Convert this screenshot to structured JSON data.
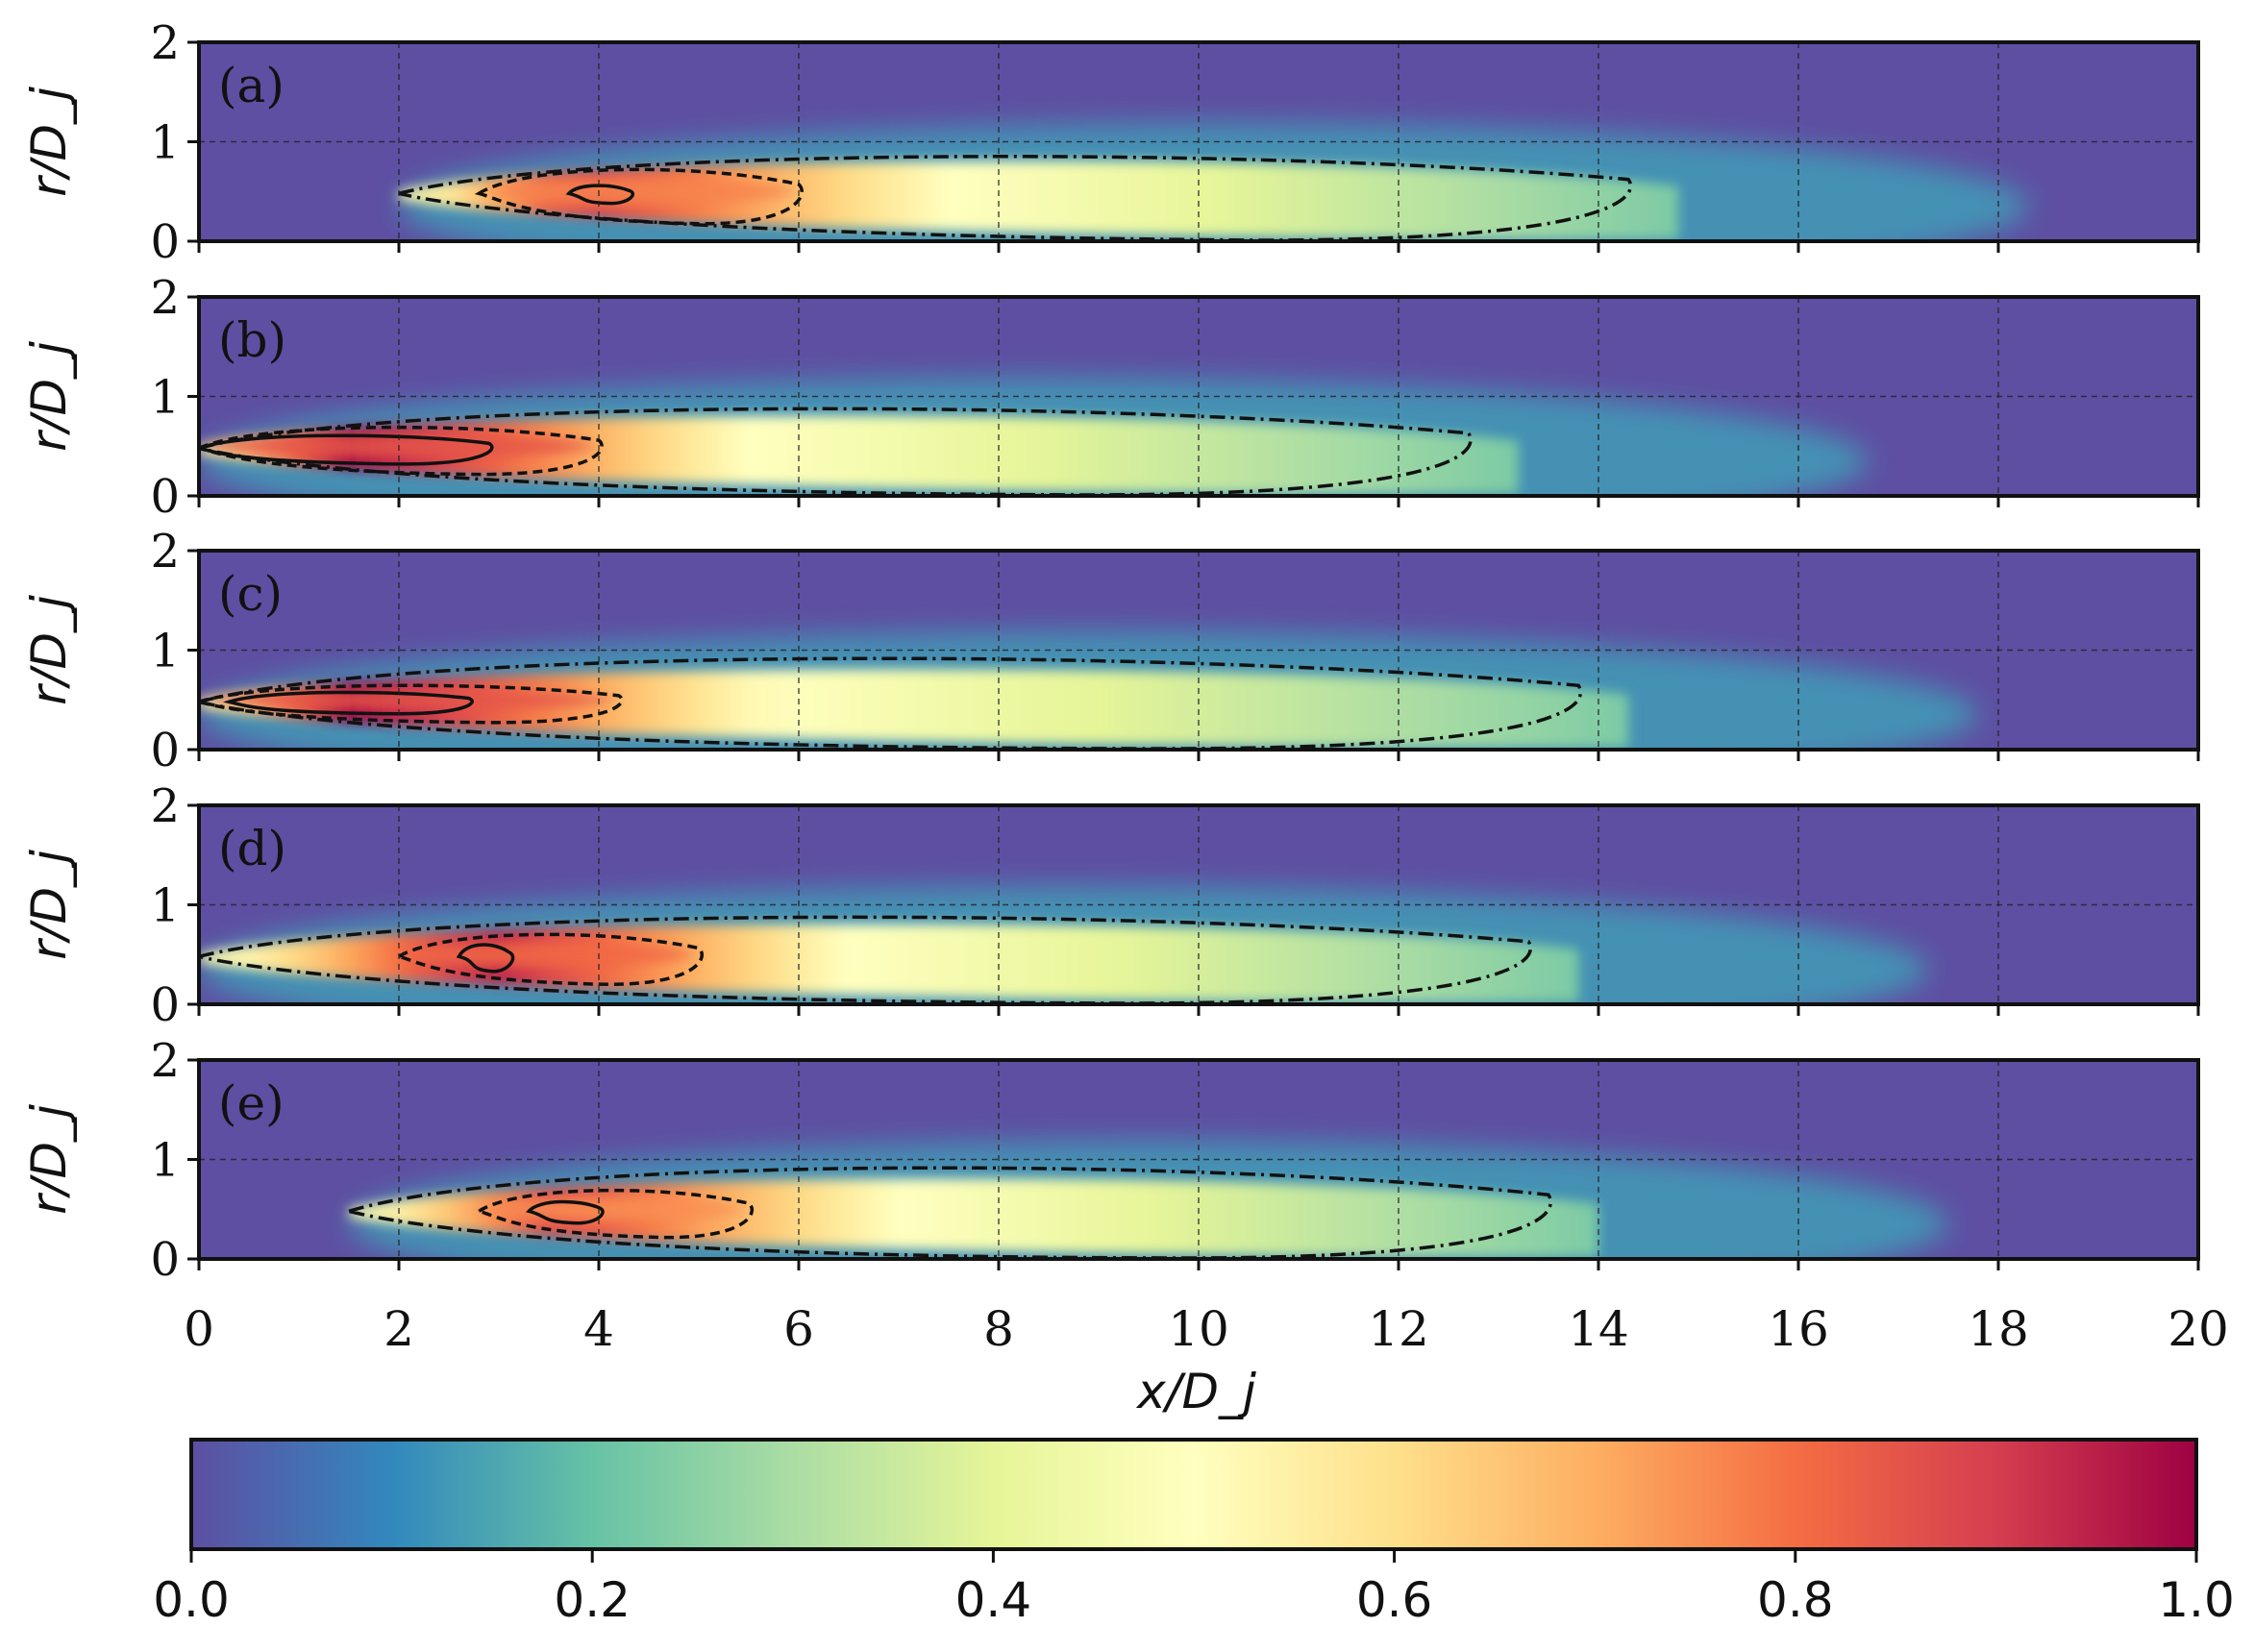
{
  "chart_data": {
    "type": "heatmap",
    "xlabel": "x/D_j",
    "ylabel": "r/D_j",
    "xlim": [
      0,
      20
    ],
    "ylim": [
      0,
      2
    ],
    "x_ticks": [
      "0",
      "2",
      "4",
      "6",
      "8",
      "10",
      "12",
      "14",
      "16",
      "18",
      "20"
    ],
    "y_ticks": [
      "0",
      "1",
      "2"
    ],
    "grid": true,
    "colormap": "Spectral_r",
    "colorbar": {
      "range": [
        0.0,
        1.0
      ],
      "ticks": [
        "0.0",
        "0.2",
        "0.4",
        "0.6",
        "0.8",
        "1.0"
      ],
      "stops": [
        "#5e4fa2",
        "#3288bd",
        "#66c2a5",
        "#abdda4",
        "#e6f598",
        "#ffffbf",
        "#fee08b",
        "#fdae61",
        "#f46d43",
        "#d53e4f",
        "#9e0142"
      ]
    },
    "panels": [
      {
        "label": "(a)",
        "outer_start": 2.0,
        "outer_end": 14.3,
        "outer_radius": 0.92,
        "mid_start": 2.8,
        "mid_end": 6.0,
        "mid_radius": 0.38,
        "inner_start": 3.7,
        "inner_end": 4.3,
        "inner_radius": 0.1,
        "peak_value": 0.9,
        "peak_x": 3.8
      },
      {
        "label": "(b)",
        "outer_start": 0.0,
        "outer_end": 12.7,
        "outer_radius": 0.95,
        "mid_start": 0.0,
        "mid_end": 4.0,
        "mid_radius": 0.33,
        "inner_start": 0.0,
        "inner_end": 2.9,
        "inner_radius": 0.16,
        "peak_value": 1.0,
        "peak_x": 1.5
      },
      {
        "label": "(c)",
        "outer_start": 0.0,
        "outer_end": 13.8,
        "outer_radius": 1.0,
        "mid_start": 0.0,
        "mid_end": 4.2,
        "mid_radius": 0.26,
        "inner_start": 0.3,
        "inner_end": 2.7,
        "inner_radius": 0.12,
        "peak_value": 1.0,
        "peak_x": 1.5
      },
      {
        "label": "(d)",
        "outer_start": 0.0,
        "outer_end": 13.3,
        "outer_radius": 0.95,
        "mid_start": 2.0,
        "mid_end": 5.0,
        "mid_radius": 0.35,
        "inner_start": 2.6,
        "inner_end": 3.1,
        "inner_radius": 0.15,
        "peak_value": 0.95,
        "peak_x": 2.9
      },
      {
        "label": "(e)",
        "outer_start": 1.5,
        "outer_end": 13.5,
        "outer_radius": 1.0,
        "mid_start": 2.8,
        "mid_end": 5.5,
        "mid_radius": 0.33,
        "inner_start": 3.3,
        "inner_end": 4.0,
        "inner_radius": 0.12,
        "peak_value": 0.88,
        "peak_x": 3.6
      }
    ]
  }
}
